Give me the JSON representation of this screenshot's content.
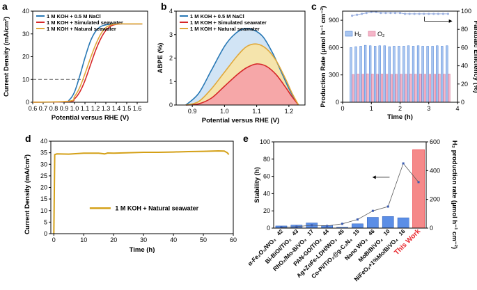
{
  "panels": {
    "a": "a",
    "b": "b",
    "c": "c",
    "d": "d",
    "e": "e"
  },
  "colors": {
    "blue": "#2878b5",
    "red": "#d62728",
    "orange": "#e0a83a",
    "gold": "#d4a017",
    "bar_blue": "#4a7fd6",
    "bar_pink": "#f4b6c8",
    "this_work": "#f25c5c"
  },
  "chart_data": [
    {
      "id": "a",
      "type": "line",
      "xlabel": "Potential versus RHE (V)",
      "ylabel": "Current Density (mA/cm²)",
      "xlim": [
        0.6,
        1.7
      ],
      "ylim": [
        0,
        40
      ],
      "xticks": [
        "0.6",
        "0.7",
        "0.8",
        "0.9",
        "1.0",
        "1.1",
        "1.2",
        "1.3",
        "1.4",
        "1.5",
        "1.6"
      ],
      "yticks": [
        "0",
        "10",
        "20",
        "30",
        "40"
      ],
      "reference_line": {
        "y": 10,
        "x_from": 0.6,
        "x_to": 1.09
      },
      "series": [
        {
          "name": "1 M KOH + 0.5 M NaCl",
          "color": "#2878b5",
          "x": [
            0.6,
            0.9,
            0.95,
            1.0,
            1.05,
            1.1,
            1.15,
            1.2,
            1.25,
            1.3,
            1.35,
            1.4,
            1.45,
            1.5,
            1.6,
            1.65
          ],
          "y": [
            0,
            0.2,
            1.0,
            4.5,
            11.5,
            19.5,
            26.5,
            31.0,
            33.2,
            34.0,
            34.3,
            34.4,
            34.4,
            34.4,
            34.4,
            34.4
          ]
        },
        {
          "name": "1 M KOH + Simulated seawater",
          "color": "#d62728",
          "x": [
            0.6,
            0.95,
            1.0,
            1.05,
            1.1,
            1.15,
            1.2,
            1.25,
            1.3,
            1.35,
            1.4,
            1.45,
            1.5,
            1.6,
            1.65
          ],
          "y": [
            0,
            0.3,
            1.5,
            4.5,
            9.5,
            16.0,
            22.5,
            27.8,
            31.5,
            33.5,
            34.2,
            34.4,
            34.4,
            34.4,
            34.4
          ]
        },
        {
          "name": "1 M KOH + Natural seawater",
          "color": "#e0a83a",
          "x": [
            0.6,
            0.95,
            1.0,
            1.05,
            1.1,
            1.15,
            1.2,
            1.25,
            1.3,
            1.35,
            1.4,
            1.45,
            1.5,
            1.6,
            1.65
          ],
          "y": [
            0,
            0.5,
            2.5,
            6.5,
            12.5,
            19.0,
            25.0,
            29.8,
            32.8,
            34.0,
            34.3,
            34.4,
            34.4,
            34.4,
            34.4
          ]
        }
      ]
    },
    {
      "id": "b",
      "type": "area",
      "xlabel": "Potential versus RHE (V)",
      "ylabel": "ABPE (%)",
      "xlim": [
        0.85,
        1.25
      ],
      "ylim": [
        0,
        4
      ],
      "xticks": [
        "0.9",
        "1.0",
        "1.1",
        "1.2"
      ],
      "yticks": [
        "0",
        "1",
        "2",
        "3",
        "4"
      ],
      "series": [
        {
          "name": "1 M KOH + 0.5 M NaCl",
          "color": "#2878b5",
          "fill": "#cfe3f4",
          "x": [
            0.88,
            0.92,
            0.96,
            1.0,
            1.03,
            1.06,
            1.09,
            1.12,
            1.15,
            1.18,
            1.2,
            1.22,
            1.23
          ],
          "y": [
            0,
            0.5,
            1.5,
            2.5,
            3.0,
            3.25,
            3.2,
            2.9,
            2.2,
            1.3,
            0.7,
            0.2,
            0
          ]
        },
        {
          "name": "1 M KOH + Simulated seawater",
          "color": "#d62728",
          "fill": "#f5a3a8",
          "x": [
            0.88,
            0.92,
            0.96,
            1.0,
            1.04,
            1.07,
            1.1,
            1.13,
            1.16,
            1.19,
            1.21,
            1.23
          ],
          "y": [
            0,
            0.05,
            0.3,
            0.8,
            1.3,
            1.6,
            1.75,
            1.65,
            1.3,
            0.75,
            0.35,
            0
          ]
        },
        {
          "name": "1 M KOH + Natural seawater",
          "color": "#e0a83a",
          "fill": "#f7e4a8",
          "x": [
            0.88,
            0.92,
            0.96,
            1.0,
            1.04,
            1.07,
            1.1,
            1.13,
            1.16,
            1.19,
            1.21,
            1.23
          ],
          "y": [
            0,
            0.15,
            0.7,
            1.4,
            2.1,
            2.5,
            2.6,
            2.4,
            1.9,
            1.1,
            0.5,
            0
          ]
        }
      ]
    },
    {
      "id": "c",
      "type": "bar",
      "xlabel": "Time (h)",
      "ylabel": "Production Rate (μmol h⁻¹ cm⁻²)",
      "y2label": "Faradaic Efficiency (%)",
      "xlim": [
        0,
        4
      ],
      "ylim": [
        0,
        1000
      ],
      "y2lim": [
        0,
        100
      ],
      "xticks": [
        "0",
        "1",
        "2",
        "3",
        "4"
      ],
      "yticks": [
        "0",
        "300",
        "600",
        "900"
      ],
      "y2ticks": [
        "0",
        "20",
        "40",
        "60",
        "80",
        "100"
      ],
      "times": [
        0.33,
        0.5,
        0.67,
        0.83,
        1.0,
        1.17,
        1.33,
        1.5,
        1.67,
        1.83,
        2.0,
        2.17,
        2.33,
        2.5,
        2.67,
        2.83,
        3.0,
        3.17,
        3.33,
        3.5,
        3.67
      ],
      "legend": [
        "H₂",
        "O₂"
      ],
      "series": [
        {
          "name": "H2",
          "color": "#4a7fd6",
          "values": [
            600,
            610,
            615,
            625,
            620,
            615,
            620,
            620,
            610,
            615,
            615,
            615,
            620,
            615,
            620,
            615,
            615,
            615,
            620,
            615,
            620
          ]
        },
        {
          "name": "O2",
          "color": "#f4b6c8",
          "values": [
            305,
            310,
            308,
            312,
            310,
            308,
            310,
            308,
            306,
            308,
            308,
            308,
            310,
            308,
            310,
            308,
            308,
            308,
            310,
            308,
            310
          ]
        },
        {
          "name": "Faradaic Efficiency",
          "color": "#9ab0e0",
          "values": [
            95,
            96,
            97,
            98,
            99,
            99,
            98,
            98,
            98,
            98,
            98,
            97,
            97,
            97,
            97,
            97,
            97,
            97,
            97,
            97,
            97
          ]
        }
      ]
    },
    {
      "id": "d",
      "type": "line",
      "xlabel": "Time (h)",
      "ylabel": "Current Density (mA/cm²)",
      "xlim": [
        -1,
        60
      ],
      "ylim": [
        0,
        40
      ],
      "xticks": [
        "0",
        "10",
        "20",
        "30",
        "40",
        "50",
        "60"
      ],
      "yticks": [
        "0",
        "5",
        "10",
        "15",
        "20",
        "25",
        "30",
        "35",
        "40"
      ],
      "series": [
        {
          "name": "1 M KOH + Natural seawater",
          "color": "#d4a017",
          "x": [
            0,
            0.3,
            1,
            5,
            10,
            15,
            17,
            18,
            20,
            25,
            30,
            35,
            40,
            45,
            50,
            55,
            57,
            58,
            58.5
          ],
          "y": [
            0,
            34.2,
            34.5,
            34.4,
            34.8,
            34.8,
            34.5,
            34.9,
            34.8,
            35.0,
            35.2,
            35.2,
            35.3,
            35.5,
            35.6,
            35.8,
            35.7,
            35.0,
            34.2
          ]
        }
      ]
    },
    {
      "id": "e",
      "type": "bar",
      "xlabel": "",
      "ylabel": "Stability (h)",
      "y2label": "H₂ production rate (μmol h⁻¹ cm⁻²)",
      "ylim": [
        0,
        100
      ],
      "y2lim": [
        0,
        600
      ],
      "yticks": [
        "0",
        "20",
        "40",
        "60",
        "80",
        "100"
      ],
      "y2ticks": [
        "0",
        "200",
        "400",
        "600"
      ],
      "categories": [
        "α-Fe₂O₃/WO₃",
        "Bi-BiOI/TiO₂",
        "RhO₂/Mo-BiVO₄",
        "PAN-GO/TiO₂",
        "Ag+ZnFe-LDH/WO₃",
        "Co-Pi/TiO₂@g-C₃N₄",
        "Nano WO₃",
        "MoB/BiVO₄",
        "NiFeOₓ+1%Mo/BiVO₄",
        "This Work"
      ],
      "refs": [
        "42",
        "43",
        "17",
        "44",
        "45",
        "15",
        "46",
        "10",
        "16",
        ""
      ],
      "this_work_label": "This Work",
      "series": [
        {
          "name": "Stability",
          "color": "#4a7fd6",
          "values": [
            2.5,
            3.5,
            6.0,
            3.0,
            1.0,
            5.0,
            12.5,
            13.5,
            12.0,
            91
          ]
        },
        {
          "name": "H2 production rate",
          "color": "#3a5bb0",
          "values": [
            5,
            10,
            20,
            15,
            30,
            60,
            120,
            150,
            450,
            320
          ]
        }
      ]
    }
  ]
}
